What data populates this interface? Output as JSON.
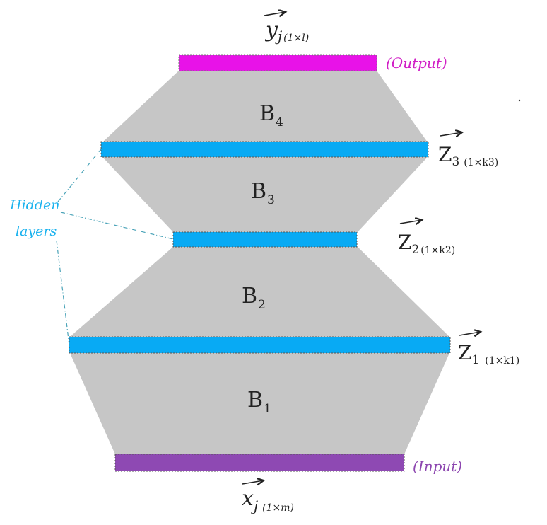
{
  "diagram": {
    "blocks": [
      {
        "id": "B1",
        "label": "B",
        "subscript": "1"
      },
      {
        "id": "B2",
        "label": "B",
        "subscript": "2"
      },
      {
        "id": "B3",
        "label": "B",
        "subscript": "3"
      },
      {
        "id": "B4",
        "label": "B",
        "subscript": "4"
      }
    ],
    "layers": {
      "output": {
        "var": "y",
        "sub": "j",
        "dims": "(1×l)",
        "tag": "(Output)"
      },
      "z3": {
        "var": "Z",
        "sub": "3",
        "dims": "(1×k3)"
      },
      "z2": {
        "var": "Z",
        "sub": "2",
        "dims": "(1×k2)"
      },
      "z1": {
        "var": "Z",
        "sub": "1",
        "dims": "(1×k1)"
      },
      "input": {
        "var": "x",
        "sub": "j",
        "dims": "(1×m)",
        "tag": "(Input)"
      }
    },
    "hidden_label_line1": "Hidden",
    "hidden_label_line2": "layers",
    "colors": {
      "block": "#c6c6c6",
      "hidden": "#08aaf4",
      "output": "#e812e8",
      "input": "#8e49b3",
      "hidden_text": "#1ab2ee",
      "output_text": "#d11fc6",
      "input_text": "#8d47b0",
      "ink": "#222222"
    }
  }
}
